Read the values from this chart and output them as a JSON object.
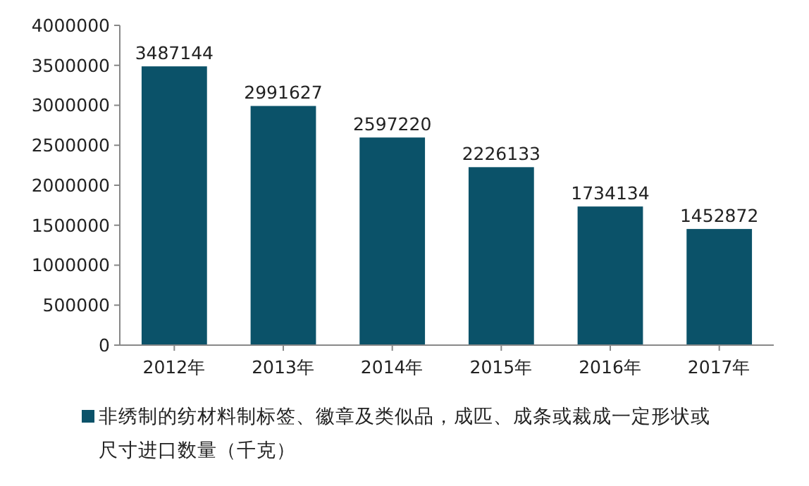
{
  "chart_data": {
    "type": "bar",
    "categories": [
      "2012年",
      "2013年",
      "2014年",
      "2015年",
      "2016年",
      "2017年"
    ],
    "series": [
      {
        "name": "非绣制的纺材料制标签、徽章及类似品，成匹、成条或裁成一定形状或尺寸进口数量（千克）",
        "color": "#0b5269",
        "values": [
          3487144,
          2991627,
          2597220,
          2226133,
          1734134,
          1452872
        ]
      }
    ],
    "ylim": [
      0,
      4000000
    ],
    "yticks": [
      0,
      500000,
      1000000,
      1500000,
      2000000,
      2500000,
      3000000,
      3500000,
      4000000
    ],
    "data_labels": true,
    "grid": false,
    "legend": "bottom"
  }
}
